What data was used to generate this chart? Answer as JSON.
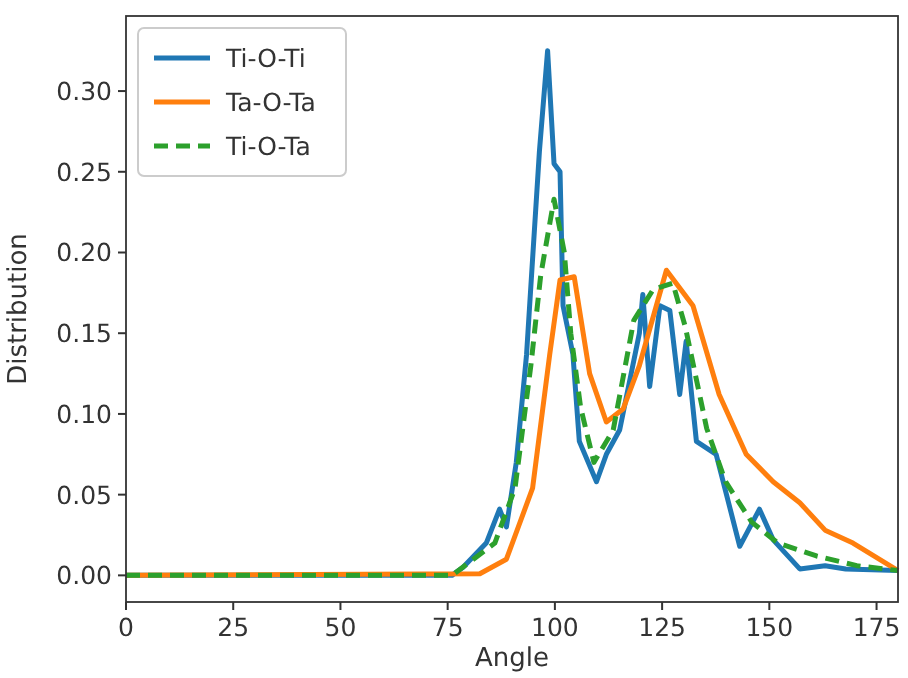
{
  "chart_data": {
    "type": "line",
    "xlabel": "Angle",
    "ylabel": "Distribution",
    "xlim": [
      0,
      180
    ],
    "xticks": [
      0,
      25,
      50,
      75,
      100,
      125,
      150,
      175
    ],
    "ylim": [
      -0.0165,
      0.3465
    ],
    "yticks": [
      {
        "value": 0,
        "label": "0.00"
      },
      {
        "value": 0.05,
        "label": "0.05"
      },
      {
        "value": 0.1,
        "label": "0.10"
      },
      {
        "value": 0.15,
        "label": "0.15"
      },
      {
        "value": 0.2,
        "label": "0.20"
      },
      {
        "value": 0.25,
        "label": "0.25"
      },
      {
        "value": 0.3,
        "label": "0.30"
      }
    ],
    "legend": "top left",
    "grid": false,
    "series": [
      {
        "name": "Ti-O-Ti",
        "color": "#1f77b4",
        "line_style": "solid",
        "x": [
          0,
          76,
          78.6,
          84,
          87.1,
          88.7,
          91,
          93.4,
          94.8,
          96.4,
          98.3,
          99.8,
          101.2,
          101.9,
          104.2,
          105.7,
          109.7,
          112,
          115.1,
          119.7,
          120.5,
          122.1,
          124.5,
          126.8,
          129.1,
          130.6,
          133,
          137.6,
          143.1,
          147.7,
          150.9,
          157.1,
          163,
          167.8,
          180
        ],
        "values": [
          0,
          0,
          0.005,
          0.02,
          0.041,
          0.03,
          0.07,
          0.137,
          0.196,
          0.263,
          0.325,
          0.255,
          0.25,
          0.167,
          0.137,
          0.083,
          0.058,
          0.075,
          0.09,
          0.15,
          0.174,
          0.117,
          0.167,
          0.164,
          0.112,
          0.145,
          0.083,
          0.075,
          0.018,
          0.041,
          0.022,
          0.004,
          0.006,
          0.004,
          0.003
        ]
      },
      {
        "name": "Ta-O-Ta",
        "color": "#ff7f0e",
        "line_style": "solid",
        "x": [
          0,
          82.5,
          88.7,
          94.8,
          98.8,
          101.2,
          104.5,
          108.1,
          112,
          115.9,
          119.7,
          126,
          132.2,
          138.3,
          144.6,
          150.9,
          157.1,
          163,
          169.5,
          180
        ],
        "values": [
          0,
          0.001,
          0.01,
          0.054,
          0.137,
          0.183,
          0.185,
          0.125,
          0.095,
          0.103,
          0.13,
          0.189,
          0.167,
          0.112,
          0.075,
          0.058,
          0.045,
          0.028,
          0.02,
          0.003
        ]
      },
      {
        "name": "Ti-O-Ta",
        "color": "#2ca02c",
        "line_style": "dashed",
        "x": [
          0,
          76,
          86,
          90.7,
          94.4,
          96.7,
          99.8,
          102.2,
          103.7,
          106,
          109.1,
          113.6,
          118.4,
          122.9,
          127.5,
          130.4,
          135.4,
          139.8,
          145.9,
          152,
          161,
          170.4,
          180
        ],
        "values": [
          0,
          0,
          0.02,
          0.054,
          0.13,
          0.186,
          0.233,
          0.2,
          0.15,
          0.104,
          0.07,
          0.09,
          0.158,
          0.177,
          0.181,
          0.154,
          0.091,
          0.058,
          0.033,
          0.02,
          0.012,
          0.006,
          0.003
        ]
      }
    ]
  }
}
